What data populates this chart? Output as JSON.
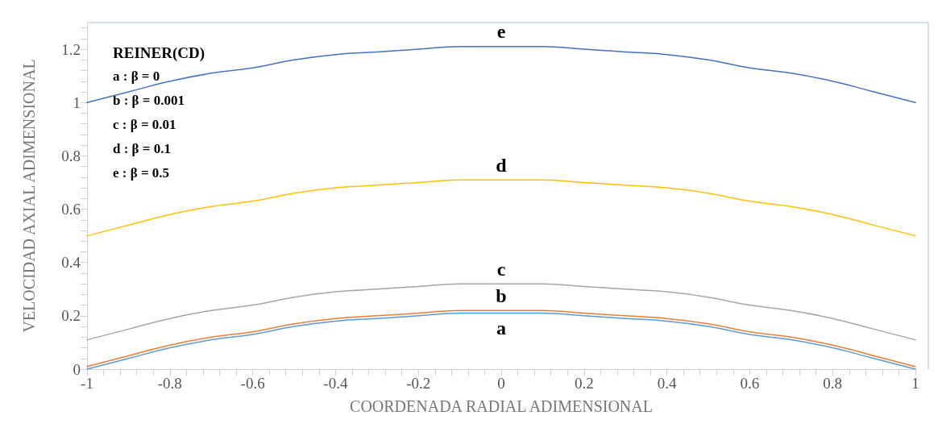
{
  "chart_data": {
    "type": "line",
    "xlabel": "COORDENADA RADIAL ADIMENSIONAL",
    "ylabel": "VELOCIDAD AXIAL ADIMENSIONAL",
    "x": [
      -1,
      -0.9,
      -0.8,
      -0.7,
      -0.6,
      -0.5,
      -0.4,
      -0.3,
      -0.2,
      -0.1,
      0,
      0.1,
      0.2,
      0.3,
      0.4,
      0.5,
      0.6,
      0.7,
      0.8,
      0.9,
      1
    ],
    "series": [
      {
        "name": "a",
        "color": "#5b9bd5",
        "values": [
          0,
          0.04,
          0.08,
          0.11,
          0.13,
          0.16,
          0.18,
          0.19,
          0.2,
          0.21,
          0.21,
          0.21,
          0.2,
          0.19,
          0.18,
          0.16,
          0.13,
          0.11,
          0.08,
          0.04,
          0
        ]
      },
      {
        "name": "b",
        "color": "#ed7d31",
        "values": [
          0.01,
          0.05,
          0.09,
          0.12,
          0.14,
          0.17,
          0.19,
          0.2,
          0.21,
          0.22,
          0.22,
          0.22,
          0.21,
          0.2,
          0.19,
          0.17,
          0.14,
          0.12,
          0.09,
          0.05,
          0.01
        ]
      },
      {
        "name": "c",
        "color": "#a5a5a5",
        "values": [
          0.11,
          0.15,
          0.19,
          0.22,
          0.24,
          0.27,
          0.29,
          0.3,
          0.31,
          0.32,
          0.32,
          0.32,
          0.31,
          0.3,
          0.29,
          0.27,
          0.24,
          0.22,
          0.19,
          0.15,
          0.11
        ]
      },
      {
        "name": "d",
        "color": "#ffc000",
        "values": [
          0.5,
          0.54,
          0.58,
          0.61,
          0.63,
          0.66,
          0.68,
          0.69,
          0.7,
          0.71,
          0.71,
          0.71,
          0.7,
          0.69,
          0.68,
          0.66,
          0.63,
          0.61,
          0.58,
          0.54,
          0.5
        ]
      },
      {
        "name": "e",
        "color": "#4472c4",
        "values": [
          1.0,
          1.04,
          1.08,
          1.11,
          1.13,
          1.16,
          1.18,
          1.19,
          1.2,
          1.21,
          1.21,
          1.21,
          1.2,
          1.19,
          1.18,
          1.16,
          1.13,
          1.11,
          1.08,
          1.04,
          1.0
        ]
      }
    ],
    "xlim": [
      -1,
      1
    ],
    "xticks": [
      -1,
      -0.8,
      -0.6,
      -0.4,
      -0.2,
      0,
      0.2,
      0.4,
      0.6,
      0.8,
      1
    ],
    "ylim": [
      0,
      1.3
    ],
    "yticks": [
      0,
      0.2,
      0.4,
      0.6,
      0.8,
      1,
      1.2
    ],
    "grid": false,
    "marker": "none",
    "line_style": "solid",
    "annotations": [
      "REINER(CD)",
      "a : β = 0",
      "b : β = 0.001",
      "c : β = 0.01",
      "d : β = 0.1",
      "e : β = 0.5"
    ]
  }
}
